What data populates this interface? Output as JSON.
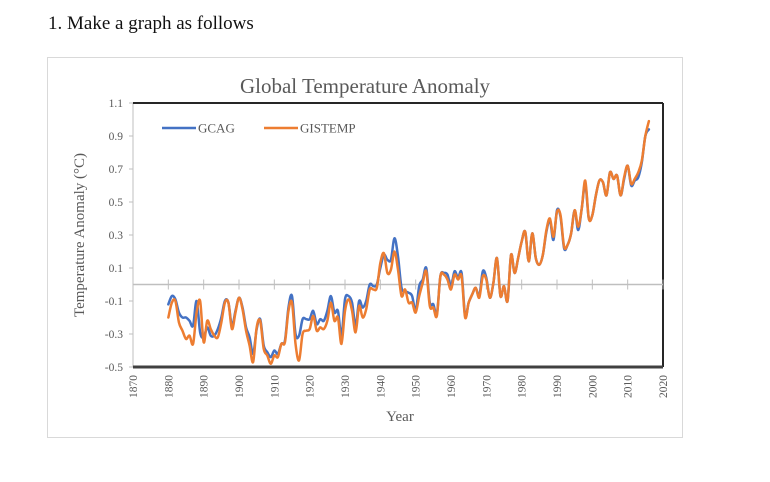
{
  "document": {
    "heading": "1. Make a graph as follows"
  },
  "chart_data": {
    "type": "line",
    "title": "Global Temperature Anomaly",
    "xlabel": "Year",
    "ylabel": "Temperature Anomaly (°C)",
    "xlim": [
      1870,
      2020
    ],
    "ylim": [
      -0.5,
      1.1
    ],
    "xticks": [
      "1870",
      "1880",
      "1890",
      "1900",
      "1910",
      "1920",
      "1930",
      "1940",
      "1950",
      "1960",
      "1970",
      "1980",
      "1990",
      "2000",
      "2010",
      "2020"
    ],
    "yticks": [
      "1.1",
      "0.9",
      "0.7",
      "0.5",
      "0.3",
      "0.1",
      "-0.1",
      "-0.3",
      "-0.5"
    ],
    "grid": false,
    "legend": "top-left",
    "series": [
      {
        "name": "GCAG",
        "color": "#4472C4",
        "x": [
          1880,
          1881,
          1882,
          1883,
          1884,
          1885,
          1886,
          1887,
          1888,
          1889,
          1890,
          1891,
          1892,
          1893,
          1894,
          1895,
          1896,
          1897,
          1898,
          1899,
          1900,
          1901,
          1902,
          1903,
          1904,
          1905,
          1906,
          1907,
          1908,
          1909,
          1910,
          1911,
          1912,
          1913,
          1914,
          1915,
          1916,
          1917,
          1918,
          1919,
          1920,
          1921,
          1922,
          1923,
          1924,
          1925,
          1926,
          1927,
          1928,
          1929,
          1930,
          1931,
          1932,
          1933,
          1934,
          1935,
          1936,
          1937,
          1938,
          1939,
          1940,
          1941,
          1942,
          1943,
          1944,
          1945,
          1946,
          1947,
          1948,
          1949,
          1950,
          1951,
          1952,
          1953,
          1954,
          1955,
          1956,
          1957,
          1958,
          1959,
          1960,
          1961,
          1962,
          1963,
          1964,
          1965,
          1966,
          1967,
          1968,
          1969,
          1970,
          1971,
          1972,
          1973,
          1974,
          1975,
          1976,
          1977,
          1978,
          1979,
          1980,
          1981,
          1982,
          1983,
          1984,
          1985,
          1986,
          1987,
          1988,
          1989,
          1990,
          1991,
          1992,
          1993,
          1994,
          1995,
          1996,
          1997,
          1998,
          1999,
          2000,
          2001,
          2002,
          2003,
          2004,
          2005,
          2006,
          2007,
          2008,
          2009,
          2010,
          2011,
          2012,
          2013,
          2014,
          2015,
          2016
        ],
        "values": [
          -0.12,
          -0.07,
          -0.09,
          -0.17,
          -0.2,
          -0.2,
          -0.22,
          -0.25,
          -0.1,
          -0.29,
          -0.32,
          -0.26,
          -0.31,
          -0.31,
          -0.27,
          -0.2,
          -0.1,
          -0.11,
          -0.25,
          -0.16,
          -0.08,
          -0.14,
          -0.26,
          -0.32,
          -0.42,
          -0.27,
          -0.21,
          -0.37,
          -0.41,
          -0.44,
          -0.4,
          -0.42,
          -0.36,
          -0.34,
          -0.14,
          -0.07,
          -0.3,
          -0.31,
          -0.21,
          -0.21,
          -0.21,
          -0.16,
          -0.24,
          -0.21,
          -0.22,
          -0.16,
          -0.07,
          -0.17,
          -0.16,
          -0.31,
          -0.09,
          -0.07,
          -0.11,
          -0.25,
          -0.1,
          -0.14,
          -0.1,
          0.0,
          -0.01,
          0.0,
          0.1,
          0.18,
          0.15,
          0.15,
          0.28,
          0.17,
          -0.02,
          -0.04,
          -0.05,
          -0.07,
          -0.16,
          -0.01,
          0.03,
          0.1,
          -0.11,
          -0.12,
          -0.18,
          0.05,
          0.07,
          0.06,
          -0.01,
          0.08,
          0.04,
          0.07,
          -0.19,
          -0.11,
          -0.06,
          -0.02,
          -0.07,
          0.08,
          0.04,
          -0.08,
          0.01,
          0.16,
          -0.07,
          -0.01,
          -0.1,
          0.18,
          0.07,
          0.16,
          0.26,
          0.32,
          0.14,
          0.31,
          0.16,
          0.12,
          0.18,
          0.32,
          0.39,
          0.27,
          0.45,
          0.41,
          0.22,
          0.24,
          0.31,
          0.45,
          0.33,
          0.46,
          0.61,
          0.4,
          0.42,
          0.54,
          0.63,
          0.62,
          0.54,
          0.68,
          0.64,
          0.66,
          0.54,
          0.64,
          0.72,
          0.6,
          0.63,
          0.65,
          0.74,
          0.9,
          0.94
        ]
      },
      {
        "name": "GISTEMP",
        "color": "#ED7D31",
        "x": [
          1880,
          1881,
          1882,
          1883,
          1884,
          1885,
          1886,
          1887,
          1888,
          1889,
          1890,
          1891,
          1892,
          1893,
          1894,
          1895,
          1896,
          1897,
          1898,
          1899,
          1900,
          1901,
          1902,
          1903,
          1904,
          1905,
          1906,
          1907,
          1908,
          1909,
          1910,
          1911,
          1912,
          1913,
          1914,
          1915,
          1916,
          1917,
          1918,
          1919,
          1920,
          1921,
          1922,
          1923,
          1924,
          1925,
          1926,
          1927,
          1928,
          1929,
          1930,
          1931,
          1932,
          1933,
          1934,
          1935,
          1936,
          1937,
          1938,
          1939,
          1940,
          1941,
          1942,
          1943,
          1944,
          1945,
          1946,
          1947,
          1948,
          1949,
          1950,
          1951,
          1952,
          1953,
          1954,
          1955,
          1956,
          1957,
          1958,
          1959,
          1960,
          1961,
          1962,
          1963,
          1964,
          1965,
          1966,
          1967,
          1968,
          1969,
          1970,
          1971,
          1972,
          1973,
          1974,
          1975,
          1976,
          1977,
          1978,
          1979,
          1980,
          1981,
          1982,
          1983,
          1984,
          1985,
          1986,
          1987,
          1988,
          1989,
          1990,
          1991,
          1992,
          1993,
          1994,
          1995,
          1996,
          1997,
          1998,
          1999,
          2000,
          2001,
          2002,
          2003,
          2004,
          2005,
          2006,
          2007,
          2008,
          2009,
          2010,
          2011,
          2012,
          2013,
          2014,
          2015,
          2016
        ],
        "values": [
          -0.2,
          -0.11,
          -0.1,
          -0.23,
          -0.28,
          -0.33,
          -0.31,
          -0.36,
          -0.17,
          -0.1,
          -0.35,
          -0.22,
          -0.27,
          -0.31,
          -0.32,
          -0.23,
          -0.11,
          -0.11,
          -0.27,
          -0.17,
          -0.08,
          -0.15,
          -0.28,
          -0.37,
          -0.47,
          -0.26,
          -0.22,
          -0.39,
          -0.43,
          -0.48,
          -0.43,
          -0.44,
          -0.36,
          -0.35,
          -0.16,
          -0.11,
          -0.36,
          -0.46,
          -0.3,
          -0.28,
          -0.27,
          -0.19,
          -0.28,
          -0.26,
          -0.27,
          -0.22,
          -0.11,
          -0.22,
          -0.2,
          -0.36,
          -0.16,
          -0.09,
          -0.16,
          -0.29,
          -0.13,
          -0.2,
          -0.15,
          -0.03,
          -0.03,
          -0.02,
          0.13,
          0.19,
          0.07,
          0.09,
          0.2,
          0.09,
          -0.07,
          -0.03,
          -0.11,
          -0.11,
          -0.17,
          -0.07,
          0.01,
          0.08,
          -0.13,
          -0.14,
          -0.19,
          0.05,
          0.06,
          0.03,
          -0.03,
          0.06,
          0.03,
          0.05,
          -0.2,
          -0.11,
          -0.06,
          -0.02,
          -0.08,
          0.05,
          0.03,
          -0.08,
          0.01,
          0.16,
          -0.07,
          -0.01,
          -0.1,
          0.18,
          0.07,
          0.16,
          0.26,
          0.32,
          0.14,
          0.31,
          0.16,
          0.12,
          0.18,
          0.33,
          0.4,
          0.29,
          0.44,
          0.42,
          0.23,
          0.24,
          0.31,
          0.45,
          0.35,
          0.46,
          0.63,
          0.4,
          0.42,
          0.54,
          0.63,
          0.62,
          0.54,
          0.68,
          0.64,
          0.66,
          0.54,
          0.65,
          0.72,
          0.61,
          0.64,
          0.68,
          0.75,
          0.9,
          0.99
        ]
      }
    ]
  }
}
